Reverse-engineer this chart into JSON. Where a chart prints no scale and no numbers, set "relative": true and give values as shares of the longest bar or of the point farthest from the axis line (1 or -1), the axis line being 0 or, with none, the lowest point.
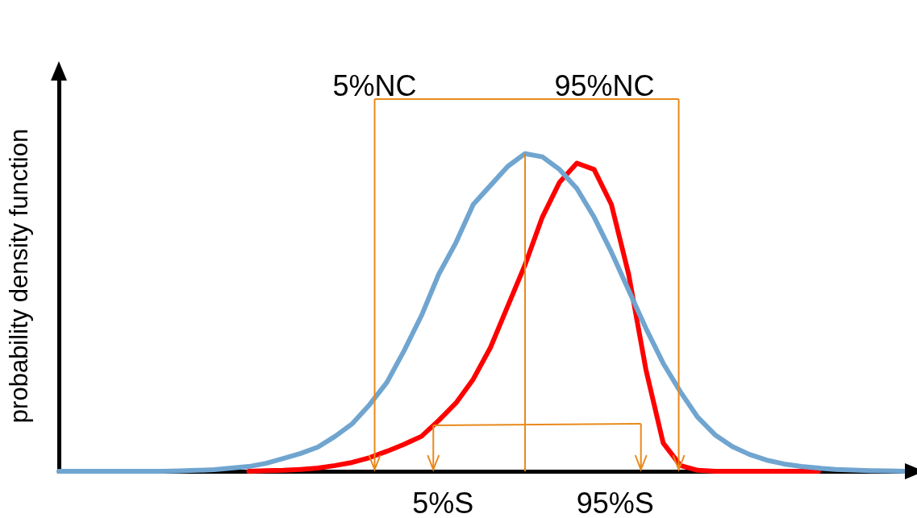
{
  "chart_data": {
    "type": "line",
    "ylabel": "probability density function",
    "relative": true,
    "marker": "none",
    "categories": [
      null,
      null,
      null,
      null,
      null,
      null,
      null,
      null,
      null,
      null,
      null,
      null,
      null,
      null,
      null,
      null,
      null,
      null,
      null,
      null,
      null,
      null,
      null,
      null,
      null,
      null,
      null,
      null,
      null,
      null,
      null,
      null,
      null,
      null,
      null,
      null,
      null,
      null,
      null,
      null,
      null,
      null,
      null,
      null,
      null,
      null,
      null,
      null,
      null,
      null
    ],
    "series": [
      {
        "color": "#ff0000",
        "values": [
          null,
          null,
          null,
          null,
          null,
          null,
          null,
          null,
          null,
          null,
          null,
          0,
          0.002,
          0.003,
          0.006,
          0.01,
          0.018,
          0.028,
          0.043,
          0.063,
          0.085,
          0.11,
          0.16,
          0.215,
          0.29,
          0.39,
          0.52,
          0.65,
          0.8,
          0.91,
          0.97,
          0.95,
          0.84,
          0.62,
          0.32,
          0.089,
          0.018,
          0.003,
          0,
          0,
          0,
          0,
          0,
          0,
          0,
          null,
          null,
          null,
          null,
          null
        ]
      },
      {
        "color": "#70a5d0",
        "values": [
          0,
          0,
          0,
          0,
          0,
          0,
          0,
          0.001,
          0.003,
          0.005,
          0.01,
          0.015,
          0.025,
          0.04,
          0.056,
          0.076,
          0.11,
          0.15,
          0.21,
          0.28,
          0.38,
          0.49,
          0.62,
          0.72,
          0.84,
          0.9,
          0.96,
          1,
          0.99,
          0.95,
          0.89,
          0.8,
          0.69,
          0.57,
          0.45,
          0.34,
          0.25,
          0.17,
          0.115,
          0.078,
          0.053,
          0.035,
          0.023,
          0.015,
          0.01,
          0.006,
          0.004,
          0.002,
          0.001,
          0
        ]
      }
    ],
    "annotations": [
      "5%NC",
      "95%NC",
      "5%S",
      "95%S"
    ]
  }
}
